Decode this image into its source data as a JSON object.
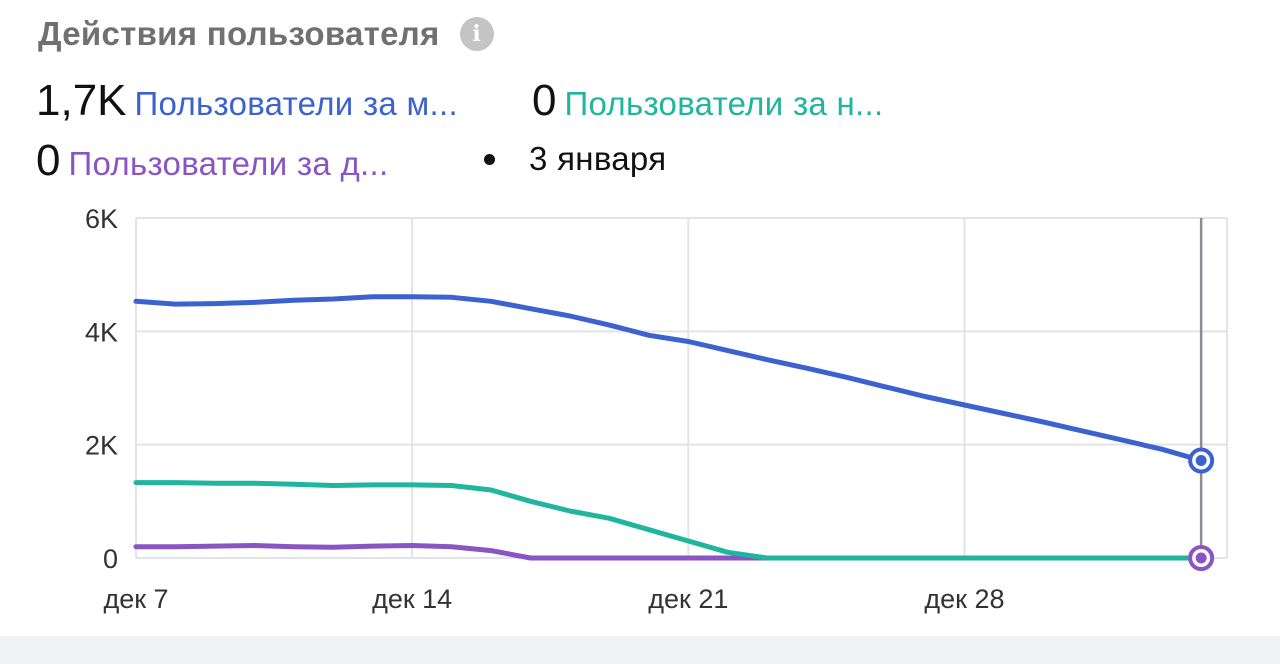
{
  "widget": {
    "title": "Действия пользователя",
    "info_icon": "info-icon",
    "selected_date": "3 января"
  },
  "metrics": [
    {
      "value": "1,7K",
      "label": "Пользователи за м...",
      "color": "#3b62cf"
    },
    {
      "value": "0",
      "label": "Пользователи за н...",
      "color": "#1fb59e"
    },
    {
      "value": "0",
      "label": "Пользователи за д...",
      "color": "#8a55c2"
    }
  ],
  "chart_data": {
    "type": "line",
    "x": [
      "2023-12-07",
      "2023-12-08",
      "2023-12-09",
      "2023-12-10",
      "2023-12-11",
      "2023-12-12",
      "2023-12-13",
      "2023-12-14",
      "2023-12-15",
      "2023-12-16",
      "2023-12-17",
      "2023-12-18",
      "2023-12-19",
      "2023-12-20",
      "2023-12-21",
      "2023-12-22",
      "2023-12-23",
      "2023-12-24",
      "2023-12-25",
      "2023-12-26",
      "2023-12-27",
      "2023-12-28",
      "2023-12-29",
      "2023-12-30",
      "2023-12-31",
      "2024-01-01",
      "2024-01-02",
      "2024-01-03"
    ],
    "x_tick_labels": [
      "дек 7",
      "дек 14",
      "дек 21",
      "дек 28"
    ],
    "y_tick_labels": [
      "6K",
      "4K",
      "2K",
      "0"
    ],
    "ylim": [
      0,
      6000
    ],
    "grid": true,
    "series": [
      {
        "color": "#3b62cf",
        "values": [
          4530,
          4480,
          4490,
          4510,
          4550,
          4570,
          4610,
          4610,
          4600,
          4530,
          4400,
          4270,
          4110,
          3930,
          3820,
          3660,
          3500,
          3350,
          3190,
          3020,
          2850,
          2700,
          2550,
          2400,
          2240,
          2080,
          1920,
          1720
        ]
      },
      {
        "color": "#1fb59e",
        "values": [
          1330,
          1330,
          1320,
          1320,
          1300,
          1280,
          1290,
          1290,
          1280,
          1200,
          1000,
          830,
          700,
          500,
          300,
          100,
          0,
          0,
          0,
          0,
          0,
          0,
          0,
          0,
          0,
          0,
          0,
          0
        ]
      },
      {
        "color": "#8a55c2",
        "values": [
          200,
          200,
          210,
          220,
          200,
          190,
          210,
          220,
          200,
          130,
          0,
          0,
          0,
          0,
          0,
          0,
          0,
          0,
          0,
          0,
          0,
          0,
          0,
          0,
          0,
          0,
          0,
          0
        ]
      }
    ]
  }
}
